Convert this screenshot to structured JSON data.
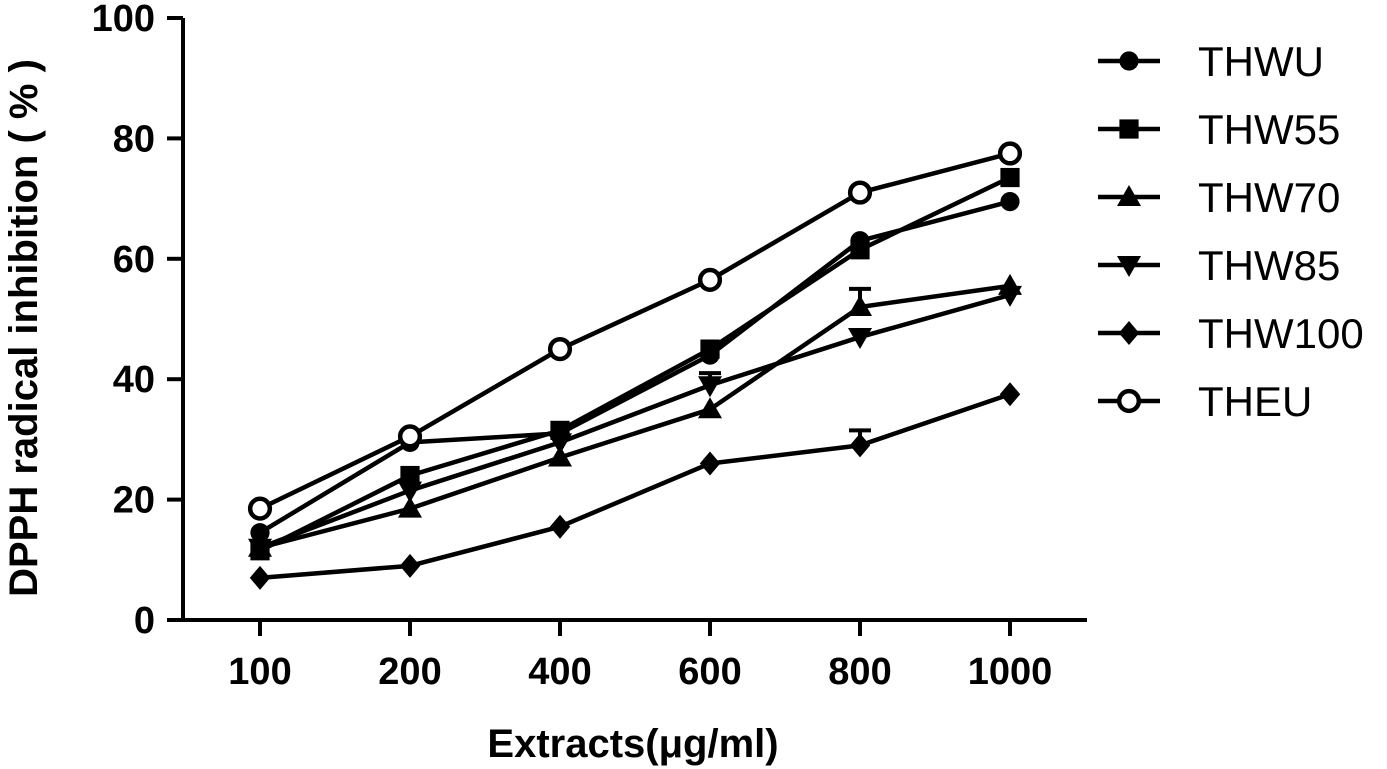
{
  "chart_data": {
    "type": "line",
    "title": "",
    "xlabel": "Extracts(μg/ml)",
    "ylabel": "DPPH radical inhibition ( % )",
    "categories": [
      "100",
      "200",
      "400",
      "600",
      "800",
      "1000"
    ],
    "ylim": [
      0,
      100
    ],
    "yticks": [
      0,
      20,
      40,
      60,
      80,
      100
    ],
    "grid": false,
    "legend_position": "right",
    "series": [
      {
        "name": "THWU",
        "marker": "circle",
        "values": [
          14.5,
          29.5,
          31.0,
          44.0,
          63.0,
          69.5
        ],
        "errors": [
          0,
          0,
          0,
          0,
          0,
          0
        ]
      },
      {
        "name": "THW55",
        "marker": "square",
        "values": [
          11.5,
          24.0,
          31.5,
          45.0,
          61.5,
          73.5
        ],
        "errors": [
          0,
          0,
          0,
          0,
          0,
          0
        ]
      },
      {
        "name": "THW70",
        "marker": "triangle-up",
        "values": [
          12.0,
          18.5,
          27.0,
          35.0,
          52.0,
          55.5
        ],
        "errors": [
          0,
          0,
          0,
          0,
          3.0,
          0
        ]
      },
      {
        "name": "THW85",
        "marker": "triangle-down",
        "values": [
          12.0,
          21.5,
          29.5,
          39.0,
          47.0,
          54.0
        ],
        "errors": [
          0,
          0,
          0,
          2.0,
          0,
          0
        ]
      },
      {
        "name": "THW100",
        "marker": "diamond",
        "values": [
          7.0,
          9.0,
          15.5,
          26.0,
          29.0,
          37.5
        ],
        "errors": [
          0,
          0,
          0,
          0,
          2.5,
          0
        ]
      },
      {
        "name": "THEU",
        "marker": "open-circle",
        "values": [
          18.5,
          30.5,
          45.0,
          56.5,
          71.0,
          77.5
        ],
        "errors": [
          0,
          0,
          0,
          0,
          0,
          0
        ]
      }
    ],
    "colors": {
      "line": "#000000",
      "background": "#ffffff"
    }
  }
}
